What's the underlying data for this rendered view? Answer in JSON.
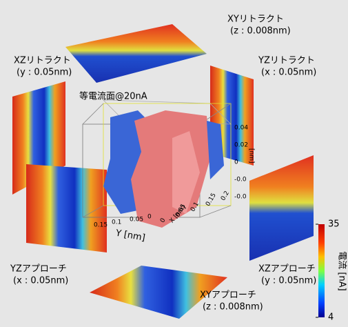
{
  "title": "等電流面@20nA",
  "panels": [
    {
      "label": "XYリトラクト",
      "param": "(z : 0.008nm)"
    },
    {
      "label": "XZリトラクト",
      "param": "(y : 0.05nm)"
    },
    {
      "label": "YZリトラクト",
      "param": "(x : 0.05nm)"
    },
    {
      "label": "YZアプローチ",
      "param": "(x : 0.05nm)"
    },
    {
      "label": "XZアプローチ",
      "param": "(y : 0.05nm)"
    },
    {
      "label": "XYアプローチ",
      "param": "(z : 0.008nm)"
    }
  ],
  "axes": {
    "y_label": "Y [nm]",
    "x_label": "X [nm]",
    "z_label": "[nm]",
    "y_ticks": [
      "0.15",
      "0.1",
      "0.05",
      "0"
    ],
    "x_ticks": [
      "0",
      "0.05",
      "0.1",
      "0.15",
      "0.2"
    ],
    "z_ticks": [
      "0.04",
      "0.02",
      "0",
      "-0.0",
      "-0.0"
    ]
  },
  "colorbar": {
    "label": "電流 [nA]",
    "min": 4,
    "max": 35,
    "ticks": [
      4,
      35
    ]
  }
}
